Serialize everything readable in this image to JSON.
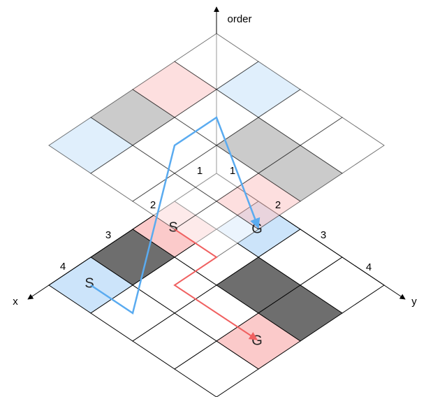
{
  "axes": {
    "vertical": "order",
    "x": "x",
    "y": "y",
    "x_ticks": [
      "1",
      "2",
      "3",
      "4"
    ],
    "y_ticks": [
      "1",
      "2",
      "3",
      "4"
    ]
  },
  "markers": [
    {
      "label": "S"
    },
    {
      "label": "S"
    },
    {
      "label": "G"
    },
    {
      "label": "G"
    }
  ]
}
